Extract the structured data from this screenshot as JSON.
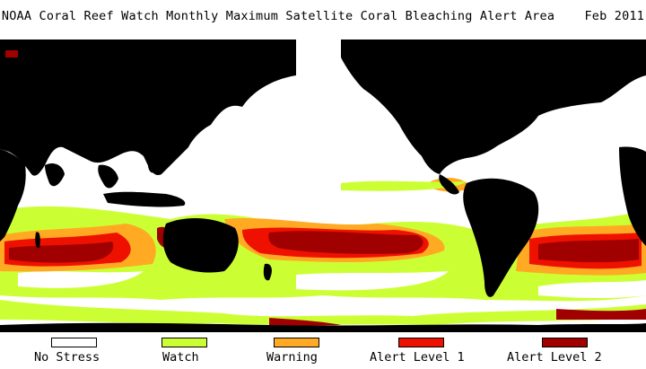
{
  "title": "NOAA Coral Reef Watch Monthly Maximum Satellite Coral Bleaching Alert Area",
  "date": "Feb 2011",
  "colors": {
    "land": "#000000",
    "no_stress": "#ffffff",
    "watch": "#ccff33",
    "warning": "#ffaa22",
    "alert1": "#ee1100",
    "alert2": "#a00000"
  },
  "legend": [
    {
      "label": "No Stress",
      "color": "#ffffff"
    },
    {
      "label": "Watch",
      "color": "#ccff33"
    },
    {
      "label": "Warning",
      "color": "#ffaa22"
    },
    {
      "label": "Alert Level 1",
      "color": "#ee1100"
    },
    {
      "label": "Alert Level 2",
      "color": "#a00000"
    }
  ]
}
